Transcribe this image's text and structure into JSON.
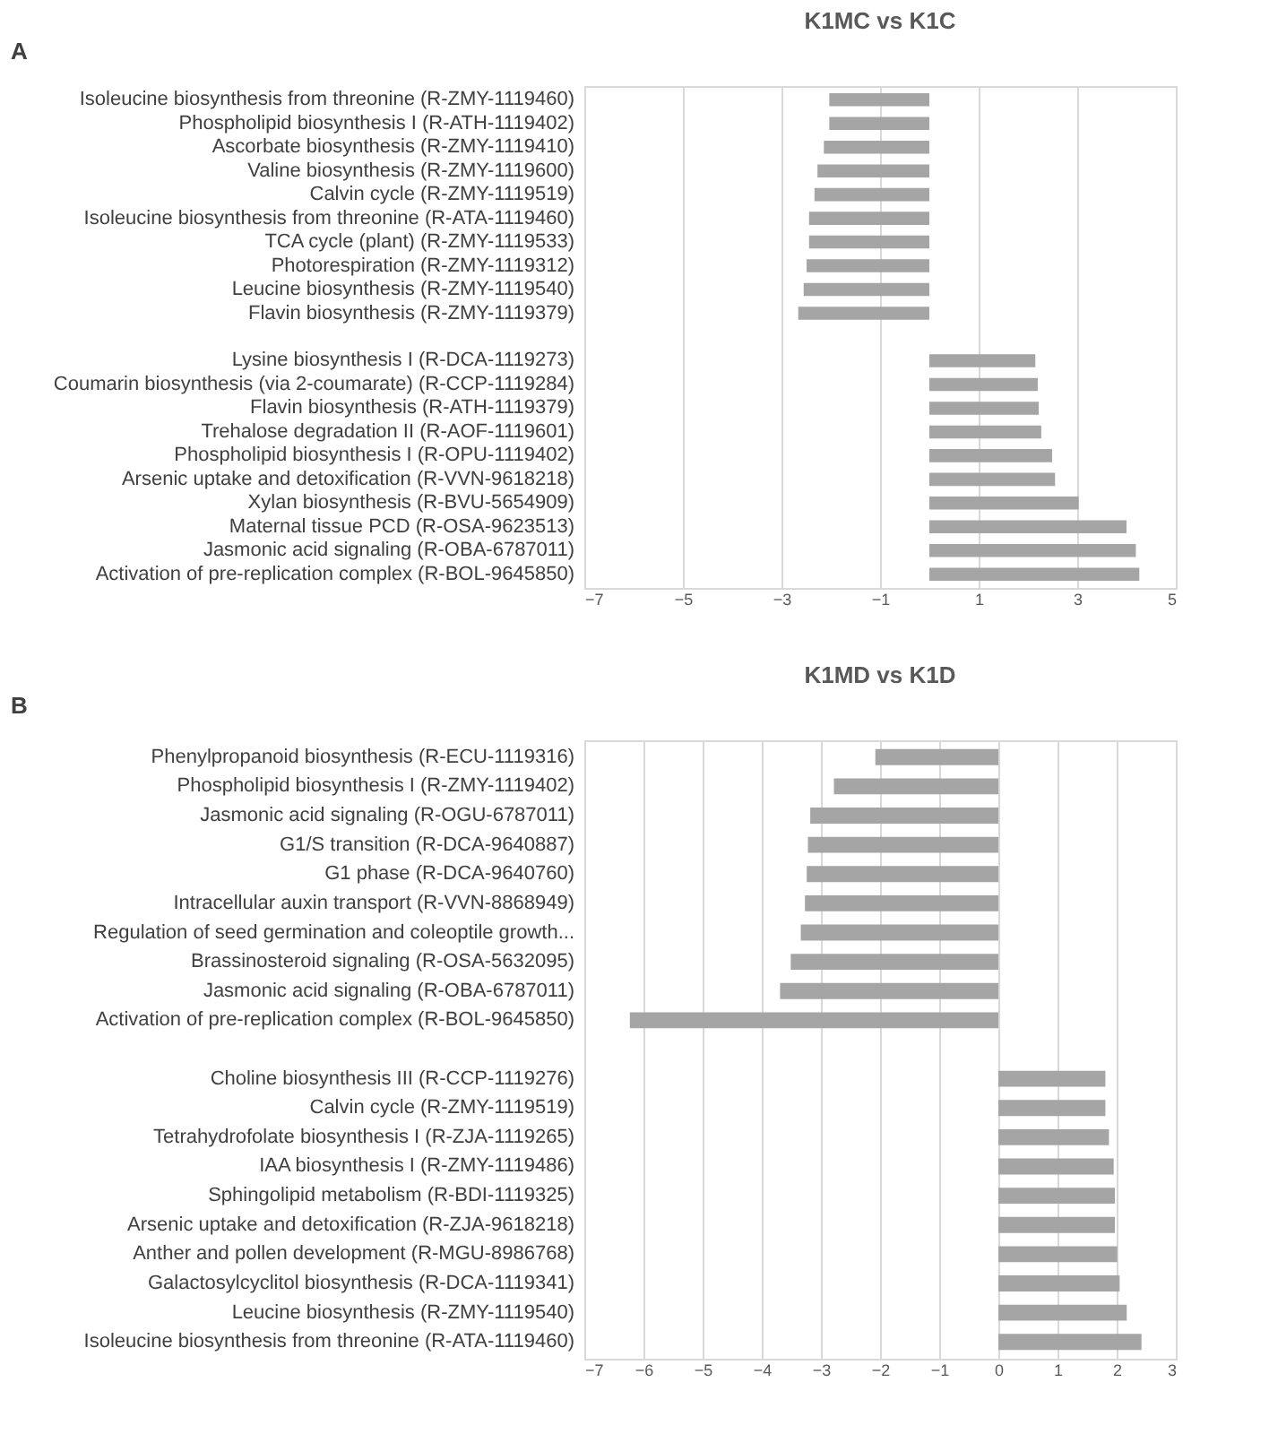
{
  "chart_data": [
    {
      "type": "bar",
      "orientation": "horizontal",
      "title": "K1MC vs K1C",
      "annotations": [
        "A"
      ],
      "categories": [
        "Isoleucine biosynthesis from threonine (R-ZMY-1119460)",
        "Phospholipid biosynthesis I (R-ATH-1119402)",
        "Ascorbate biosynthesis (R-ZMY-1119410)",
        "Valine biosynthesis (R-ZMY-1119600)",
        "Calvin cycle (R-ZMY-1119519)",
        "Isoleucine biosynthesis from threonine (R-ATA-1119460)",
        "TCA cycle (plant) (R-ZMY-1119533)",
        "Photorespiration (R-ZMY-1119312)",
        "Leucine biosynthesis (R-ZMY-1119540)",
        "Flavin biosynthesis (R-ZMY-1119379)",
        null,
        "Lysine biosynthesis I (R-DCA-1119273)",
        "Coumarin biosynthesis (via 2-coumarate) (R-CCP-1119284)",
        "Flavin biosynthesis (R-ATH-1119379)",
        "Trehalose degradation II (R-AOF-1119601)",
        "Phospholipid biosynthesis I (R-OPU-1119402)",
        "Arsenic uptake and detoxification (R-VVN-9618218)",
        "Xylan biosynthesis (R-BVU-5654909)",
        "Maternal tissue PCD (R-OSA-9623513)",
        "Jasmonic acid signaling (R-OBA-6787011)",
        "Activation of pre-replication complex (R-BOL-9645850)"
      ],
      "values": [
        -2.03,
        -2.03,
        -2.14,
        -2.27,
        -2.33,
        -2.44,
        -2.44,
        -2.49,
        -2.55,
        -2.66,
        null,
        2.15,
        2.2,
        2.22,
        2.27,
        2.49,
        2.55,
        3.03,
        4.0,
        4.19,
        4.26
      ],
      "color": "#a5a5a5",
      "xlim": [
        -7,
        5
      ],
      "xticks": [
        -7,
        -5,
        -3,
        -1,
        1,
        3,
        5
      ],
      "grid": "x"
    },
    {
      "type": "bar",
      "orientation": "horizontal",
      "title": "K1MD vs K1D",
      "annotations": [
        "B"
      ],
      "categories": [
        "Phenylpropanoid biosynthesis (R-ECU-1119316)",
        "Phospholipid biosynthesis I (R-ZMY-1119402)",
        "Jasmonic acid signaling (R-OGU-6787011)",
        "G1/S transition (R-DCA-9640887)",
        "G1 phase (R-DCA-9640760)",
        "Intracellular auxin transport (R-VVN-8868949)",
        "Regulation of seed germination and coleoptile growth...",
        "Brassinosteroid signaling (R-OSA-5632095)",
        "Jasmonic acid signaling (R-OBA-6787011)",
        "Activation of pre-replication complex (R-BOL-9645850)",
        null,
        "Choline biosynthesis III (R-CCP-1119276)",
        "Calvin cycle (R-ZMY-1119519)",
        "Tetrahydrofolate biosynthesis I (R-ZJA-1119265)",
        "IAA biosynthesis I (R-ZMY-1119486)",
        "Sphingolipid metabolism (R-BDI-1119325)",
        "Arsenic uptake and detoxification (R-ZJA-9618218)",
        "Anther and pollen development (R-MGU-8986768)",
        "Galactosylcyclitol biosynthesis (R-DCA-1119341)",
        "Leucine biosynthesis (R-ZMY-1119540)",
        "Isoleucine biosynthesis from threonine (R-ATA-1119460)"
      ],
      "values": [
        -2.08,
        -2.78,
        -3.18,
        -3.22,
        -3.24,
        -3.27,
        -3.34,
        -3.51,
        -3.69,
        -6.23,
        null,
        1.81,
        1.81,
        1.87,
        1.95,
        1.97,
        1.97,
        2.01,
        2.05,
        2.17,
        2.42
      ],
      "color": "#a5a5a5",
      "xlim": [
        -7,
        3
      ],
      "xticks": [
        -7,
        -6,
        -5,
        -4,
        -3,
        -2,
        -1,
        0,
        1,
        2,
        3
      ],
      "grid": "x"
    }
  ]
}
